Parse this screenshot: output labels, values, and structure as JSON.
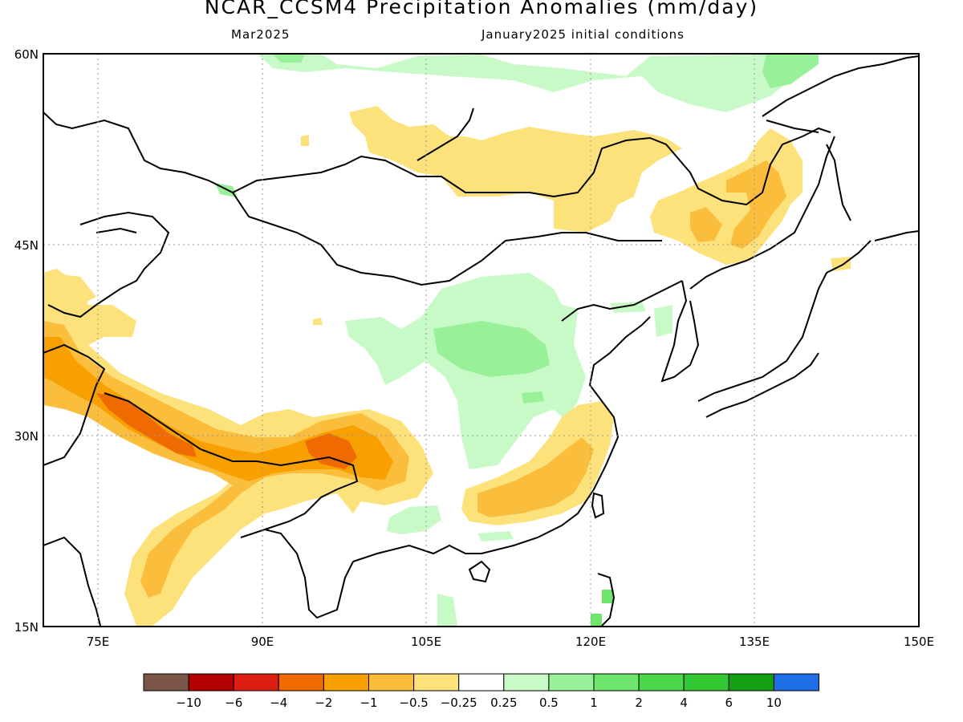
{
  "title": "NCAR_CCSM4 Precipitation Anomalies (mm/day)",
  "subtitle_left": "Mar2025",
  "subtitle_right": "January2025 initial conditions",
  "axes": {
    "lat_labels": [
      "60N",
      "45N",
      "30N",
      "15N"
    ],
    "lon_labels": [
      "75E",
      "90E",
      "105E",
      "120E",
      "135E",
      "150E"
    ],
    "lat_range": [
      15,
      60
    ],
    "lon_range": [
      70,
      150
    ],
    "grid": "dotted"
  },
  "colorbar": {
    "labels": [
      "-10",
      "-6",
      "-4",
      "-2",
      "-1",
      "-0.5",
      "-0.25",
      "0.25",
      "0.5",
      "1",
      "2",
      "4",
      "6",
      "10"
    ],
    "colors": [
      "#7a5548",
      "#b30000",
      "#dc1e10",
      "#ef6a00",
      "#f8a000",
      "#fbbe3c",
      "#fde17a",
      "#ffffff",
      "#c8fac8",
      "#98f098",
      "#6ee66e",
      "#4ad84a",
      "#32c832",
      "#12a012",
      "#1e6ee6"
    ]
  },
  "colors": {
    "dry_light": "#fde17a",
    "dry_mid": "#fbbe3c",
    "dry_strong": "#f8a000",
    "dry_heavy": "#ef6a00",
    "wet_light": "#c8fac8",
    "wet_mid": "#98f098",
    "wet_strong": "#4ad84a"
  }
}
